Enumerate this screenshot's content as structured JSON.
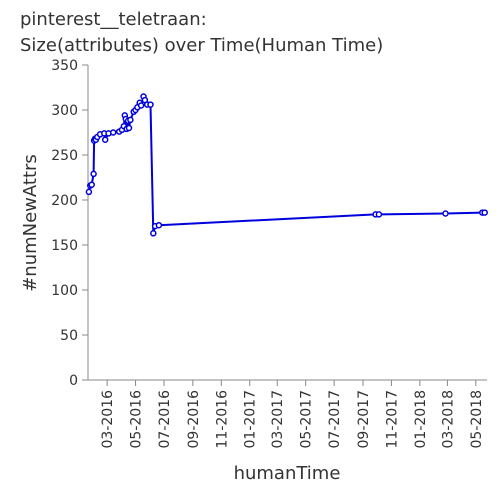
{
  "chart_data": {
    "type": "line",
    "title": [
      "pinterest__teletraan:",
      "Size(attributes) over Time(Human Time)"
    ],
    "xlabel": "humanTime",
    "ylabel": "#numNewAttrs",
    "ylim": [
      0,
      350
    ],
    "y_ticks": [
      0,
      50,
      100,
      150,
      200,
      250,
      300,
      350
    ],
    "x_range": [
      "2016-01-20",
      "2018-05-25"
    ],
    "x_ticks": [
      "03-2016",
      "05-2016",
      "07-2016",
      "09-2016",
      "11-2016",
      "01-2017",
      "03-2017",
      "05-2017",
      "07-2017",
      "09-2017",
      "11-2017",
      "01-2018",
      "03-2018",
      "05-2018"
    ],
    "x_tick_dates": [
      "2016-03-01",
      "2016-05-01",
      "2016-07-01",
      "2016-09-01",
      "2016-11-01",
      "2017-01-01",
      "2017-03-01",
      "2017-05-01",
      "2017-07-01",
      "2017-09-01",
      "2017-11-01",
      "2018-01-01",
      "2018-03-01",
      "2018-05-01"
    ],
    "grid": false,
    "colors": {
      "series": "#0000dd",
      "axis": "#888888",
      "text": "#333333"
    },
    "series": [
      {
        "points": [
          [
            "2016-01-22",
            209
          ],
          [
            "2016-01-25",
            216
          ],
          [
            "2016-01-28",
            217
          ],
          [
            "2016-02-01",
            229
          ],
          [
            "2016-02-02",
            266
          ],
          [
            "2016-02-04",
            268
          ],
          [
            "2016-02-06",
            267
          ],
          [
            "2016-02-09",
            270
          ],
          [
            "2016-02-15",
            273
          ],
          [
            "2016-02-24",
            274
          ],
          [
            "2016-02-26",
            267
          ],
          [
            "2016-03-04",
            274
          ],
          [
            "2016-03-14",
            275
          ],
          [
            "2016-03-27",
            276
          ],
          [
            "2016-04-02",
            278
          ],
          [
            "2016-04-06",
            282
          ],
          [
            "2016-04-08",
            294
          ],
          [
            "2016-04-10",
            290
          ],
          [
            "2016-04-12",
            279
          ],
          [
            "2016-04-15",
            288
          ],
          [
            "2016-04-17",
            280
          ],
          [
            "2016-04-20",
            289
          ],
          [
            "2016-04-27",
            298
          ],
          [
            "2016-05-01",
            300
          ],
          [
            "2016-05-05",
            303
          ],
          [
            "2016-05-10",
            308
          ],
          [
            "2016-05-13",
            305
          ],
          [
            "2016-05-18",
            315
          ],
          [
            "2016-05-21",
            311
          ],
          [
            "2016-05-26",
            306
          ],
          [
            "2016-06-02",
            306
          ],
          [
            "2016-06-08",
            163
          ],
          [
            "2016-06-12",
            171
          ],
          [
            "2016-06-20",
            172
          ],
          [
            "2017-09-28",
            184
          ],
          [
            "2017-10-05",
            184
          ],
          [
            "2018-02-25",
            185
          ],
          [
            "2018-05-15",
            186
          ],
          [
            "2018-05-20",
            186
          ]
        ]
      }
    ]
  }
}
